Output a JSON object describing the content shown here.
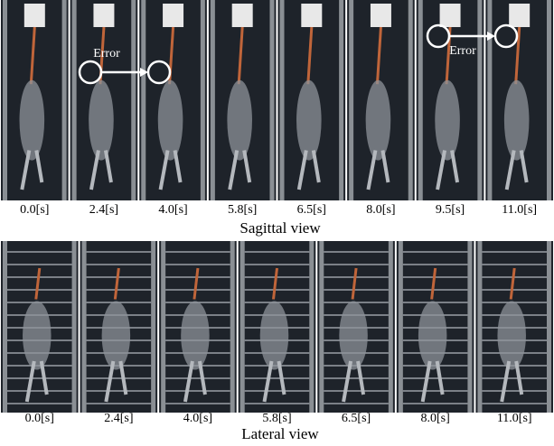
{
  "sagittal": {
    "timestamps": [
      "0.0[s]",
      "2.4[s]",
      "4.0[s]",
      "5.8[s]",
      "6.5[s]",
      "8.0[s]",
      "9.5[s]",
      "11.0[s]"
    ],
    "caption": "Sagittal view",
    "annotations": [
      "Error",
      "Error"
    ]
  },
  "lateral": {
    "timestamps": [
      "0.0[s]",
      "2.4[s]",
      "4.0[s]",
      "5.8[s]",
      "6.5[s]",
      "8.0[s]",
      "11.0[s]"
    ],
    "caption": "Lateral view"
  }
}
